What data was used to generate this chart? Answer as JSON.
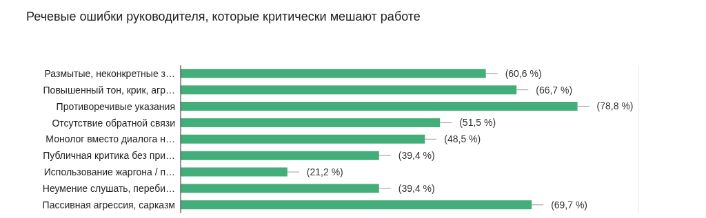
{
  "chart_data": {
    "type": "bar",
    "orientation": "horizontal",
    "title": "Речевые ошибки руководителя, которые критически мешают работе",
    "categories": [
      "Размытые, неконкретные з…",
      "Повышенный тон, крик, агр…",
      "Противоречивые указания",
      "Отсутствие обратной связи",
      "Монолог вместо диалога н…",
      "Публичная критика без при…",
      "Использование жаргона / п…",
      "Неумение слушать, переби…",
      "Пассивная агрессия, сарказм"
    ],
    "values": [
      60.6,
      66.7,
      78.8,
      51.5,
      48.5,
      39.4,
      21.2,
      39.4,
      69.7
    ],
    "value_labels": [
      "(60,6 %)",
      "(66,7 %)",
      "(78,8 %)",
      "(51,5 %)",
      "(48,5 %)",
      "(39,4 %)",
      "(21,2 %)",
      "(39,4 %)",
      "(69,7 %)"
    ],
    "color": "#43ae7a",
    "xlim": [
      0,
      90.9
    ],
    "grid": "x",
    "tick_labels": "y"
  }
}
